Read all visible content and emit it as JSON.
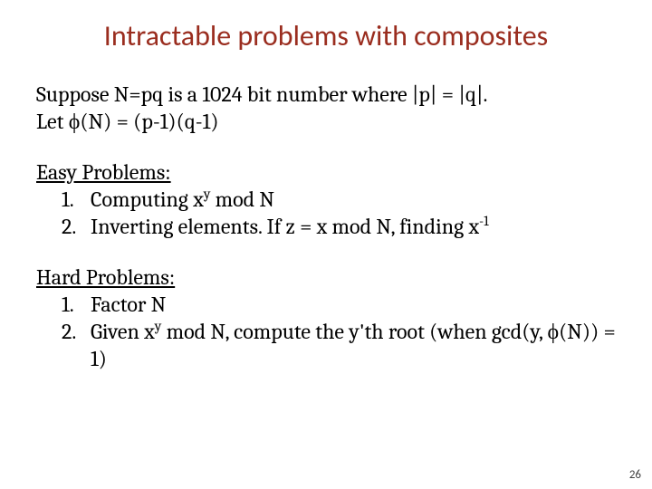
{
  "colors": {
    "title": "#9a2d1f",
    "body": "#000000",
    "background": "#ffffff",
    "pagenum": "#404040"
  },
  "title": "Intractable problems with composites",
  "intro": {
    "line1_pre": "Suppose N=pq is a 1024 bit number where |p| = |q|.",
    "line2_pre": "Let ",
    "phi": "ϕ",
    "line2_post": "(N) = (p-1)(q-1)"
  },
  "easy": {
    "heading": "Easy Problems:",
    "item1_pre": "Computing x",
    "item1_sup": "y",
    "item1_post": " mod N",
    "item2_pre": "Inverting elements. If z = x mod N, finding x",
    "item2_sup": "-1"
  },
  "hard": {
    "heading": "Hard Problems:",
    "item1": "Factor N",
    "item2_pre": "Given x",
    "item2_sup": "y",
    "item2_mid": " mod N, compute the y'th root (when gcd(y, ",
    "item2_phi": "ϕ",
    "item2_post": "(N)) = 1)"
  },
  "page": "26"
}
